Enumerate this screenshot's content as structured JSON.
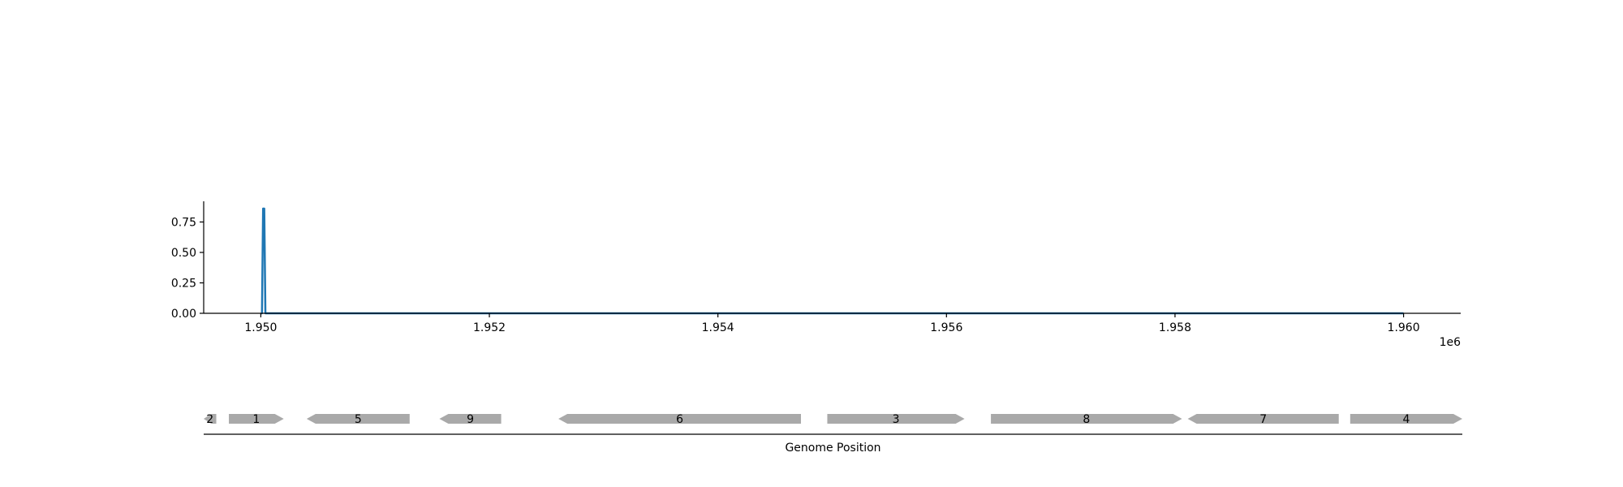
{
  "chart_data": [
    {
      "type": "line",
      "title": "",
      "xlabel": "",
      "ylabel": "",
      "x_multiplier_label": "1e6",
      "xlim": [
        1949500,
        1960500
      ],
      "ylim": [
        0,
        0.92
      ],
      "x_ticks": [
        1950000,
        1952000,
        1954000,
        1956000,
        1958000,
        1960000
      ],
      "x_tick_labels": [
        "1.950",
        "1.952",
        "1.954",
        "1.956",
        "1.958",
        "1.960"
      ],
      "y_ticks": [
        0,
        0.25,
        0.5,
        0.75
      ],
      "y_tick_labels": [
        "0.00",
        "0.25",
        "0.50",
        "0.75"
      ],
      "grid": false,
      "color": "#1f77b4",
      "x": [
        1950000,
        1950010,
        1950020,
        1950030,
        1950040,
        1950060,
        1960000
      ],
      "y": [
        0,
        0,
        0.86,
        0.86,
        0,
        0,
        0
      ]
    },
    {
      "type": "gene-map",
      "xlabel": "Genome Position",
      "xlim": [
        1949500,
        1960500
      ],
      "color": "#a9a9a9",
      "features": [
        {
          "label": "2",
          "start": 1949500,
          "end": 1949610,
          "strand": -1
        },
        {
          "label": "1",
          "start": 1949720,
          "end": 1950200,
          "strand": 1
        },
        {
          "label": "5",
          "start": 1950400,
          "end": 1951300,
          "strand": -1
        },
        {
          "label": "9",
          "start": 1951560,
          "end": 1952100,
          "strand": -1
        },
        {
          "label": "6",
          "start": 1952600,
          "end": 1954720,
          "strand": -1
        },
        {
          "label": "3",
          "start": 1954950,
          "end": 1956150,
          "strand": 1
        },
        {
          "label": "8",
          "start": 1956380,
          "end": 1958050,
          "strand": 1
        },
        {
          "label": "7",
          "start": 1958100,
          "end": 1959420,
          "strand": -1
        },
        {
          "label": "4",
          "start": 1959520,
          "end": 1960500,
          "strand": 1
        }
      ]
    }
  ]
}
